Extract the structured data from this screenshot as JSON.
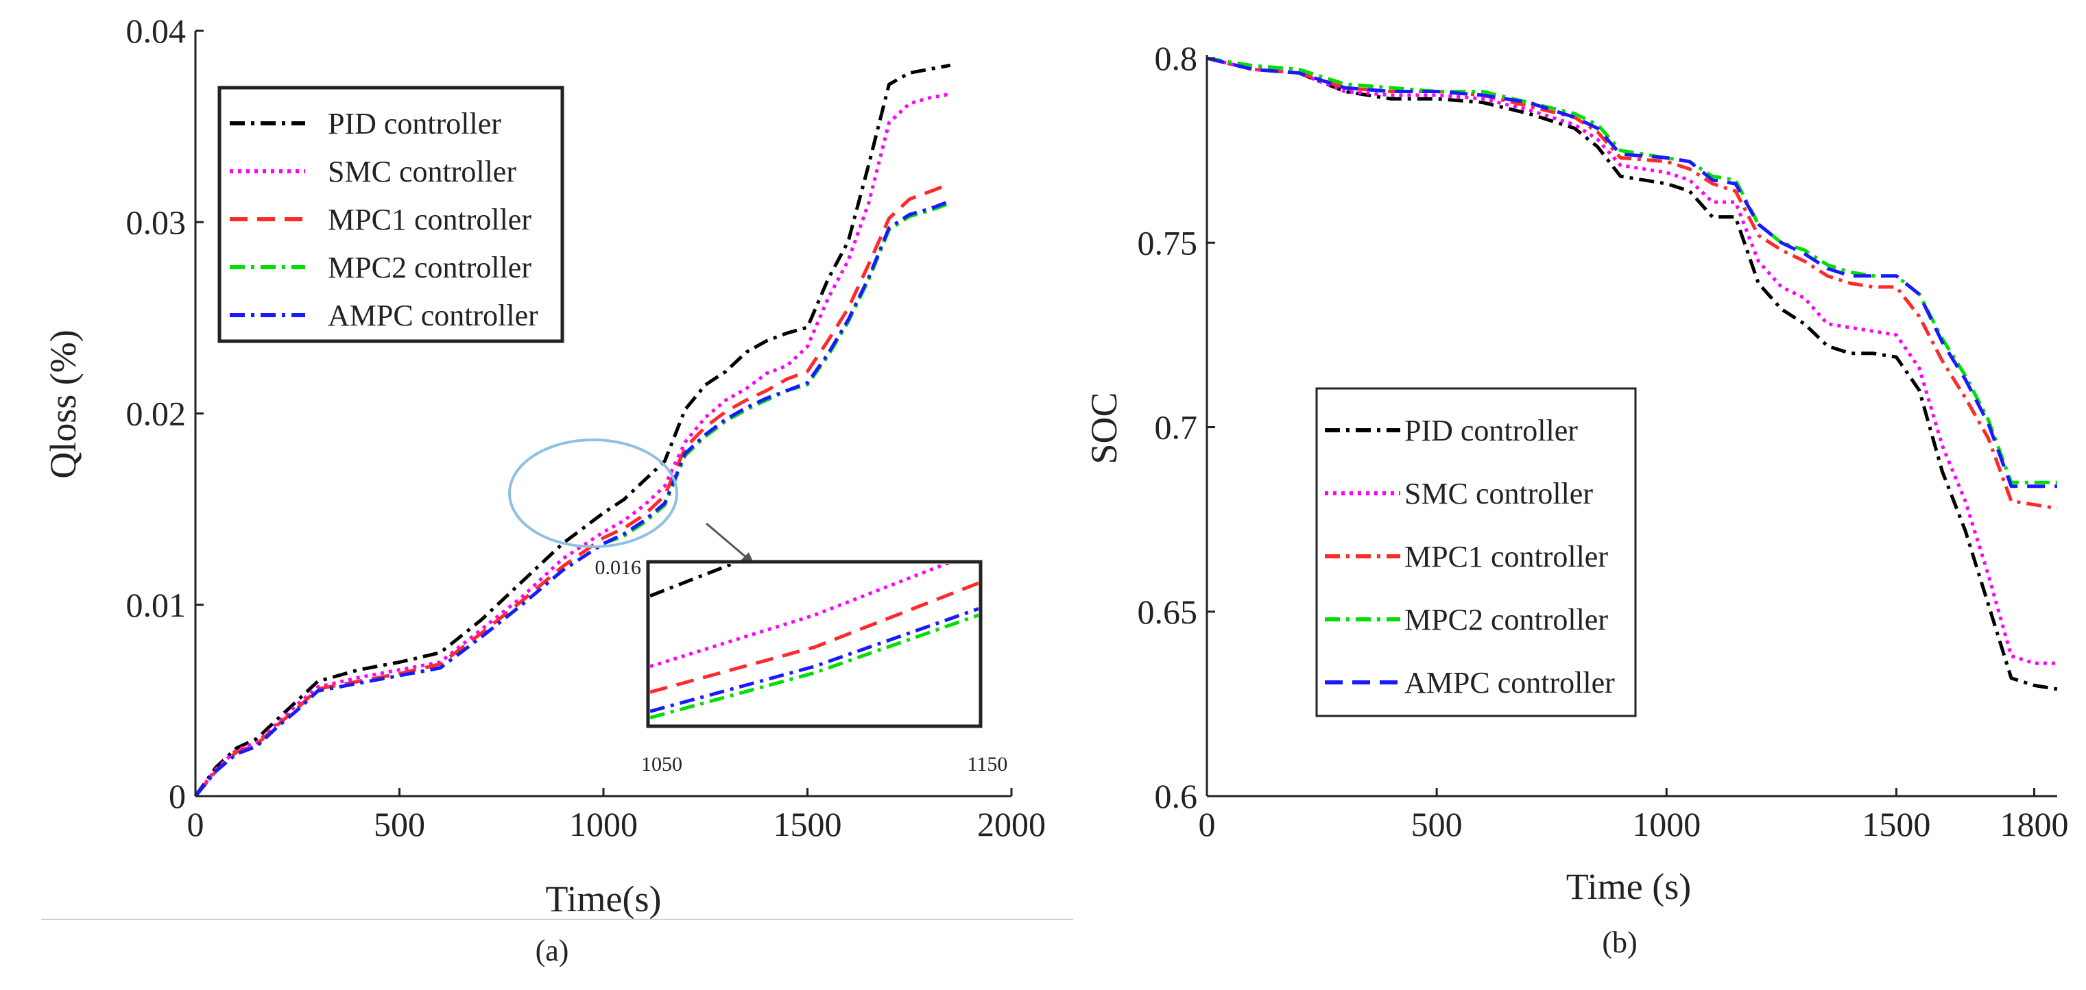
{
  "chart_data": [
    {
      "type": "line",
      "panel_caption": "(a)",
      "xlabel": "Time(s)",
      "ylabel": "Qloss (%)",
      "xlim": [
        0,
        2000
      ],
      "ylim": [
        0,
        0.04
      ],
      "x_ticks": [
        "0",
        "500",
        "1000",
        "1500",
        "2000"
      ],
      "y_ticks": [
        "0",
        "0.01",
        "0.02",
        "0.03",
        "0.04"
      ],
      "legend_position": "top-left",
      "series": [
        {
          "name": "PID controller",
          "color": "#000000",
          "dash": "dashdot",
          "x": [
            0,
            50,
            100,
            150,
            200,
            250,
            300,
            400,
            500,
            600,
            700,
            800,
            900,
            1000,
            1050,
            1100,
            1150,
            1200,
            1250,
            1300,
            1350,
            1400,
            1450,
            1500,
            1550,
            1600,
            1650,
            1700,
            1750,
            1800,
            1850
          ],
          "y": [
            0,
            0.0015,
            0.0025,
            0.003,
            0.004,
            0.005,
            0.006,
            0.0066,
            0.007,
            0.0075,
            0.0092,
            0.0112,
            0.0132,
            0.0148,
            0.0155,
            0.0165,
            0.0175,
            0.0202,
            0.0215,
            0.0222,
            0.0232,
            0.0238,
            0.0242,
            0.0245,
            0.027,
            0.029,
            0.033,
            0.0372,
            0.0378,
            0.038,
            0.0382
          ]
        },
        {
          "name": "SMC controller",
          "color": "#ff00ff",
          "dash": "dotted",
          "x": [
            0,
            50,
            100,
            150,
            200,
            250,
            300,
            400,
            500,
            600,
            700,
            800,
            900,
            1000,
            1050,
            1100,
            1150,
            1200,
            1250,
            1300,
            1350,
            1400,
            1450,
            1500,
            1550,
            1600,
            1650,
            1700,
            1750,
            1800,
            1850
          ],
          "y": [
            0,
            0.0014,
            0.0024,
            0.0028,
            0.0038,
            0.0048,
            0.0057,
            0.0062,
            0.0066,
            0.007,
            0.0087,
            0.0104,
            0.0124,
            0.0138,
            0.0144,
            0.0152,
            0.0162,
            0.0185,
            0.0198,
            0.0207,
            0.0213,
            0.0221,
            0.0225,
            0.0235,
            0.026,
            0.028,
            0.031,
            0.0352,
            0.0362,
            0.0365,
            0.0367
          ]
        },
        {
          "name": "MPC1 controller",
          "color": "#ff2a2a",
          "dash": "dashed",
          "x": [
            0,
            50,
            100,
            150,
            200,
            250,
            300,
            400,
            500,
            600,
            700,
            800,
            900,
            1000,
            1050,
            1100,
            1150,
            1200,
            1250,
            1300,
            1350,
            1400,
            1450,
            1500,
            1550,
            1600,
            1650,
            1700,
            1750,
            1800,
            1850
          ],
          "y": [
            0,
            0.0013,
            0.0023,
            0.0027,
            0.0037,
            0.0046,
            0.0056,
            0.006,
            0.0064,
            0.0069,
            0.0085,
            0.0102,
            0.012,
            0.0135,
            0.014,
            0.0147,
            0.0157,
            0.0182,
            0.0193,
            0.0201,
            0.0207,
            0.0212,
            0.0218,
            0.0222,
            0.0238,
            0.0255,
            0.0278,
            0.0302,
            0.0312,
            0.0316,
            0.032
          ]
        },
        {
          "name": "MPC2 controller",
          "color": "#00dd00",
          "dash": "dashdot",
          "x": [
            0,
            50,
            100,
            150,
            200,
            250,
            300,
            400,
            500,
            600,
            700,
            800,
            900,
            1000,
            1050,
            1100,
            1150,
            1200,
            1250,
            1300,
            1350,
            1400,
            1450,
            1500,
            1550,
            1600,
            1650,
            1700,
            1750,
            1800,
            1850
          ],
          "y": [
            0,
            0.0013,
            0.0022,
            0.0026,
            0.0036,
            0.0045,
            0.0055,
            0.0059,
            0.0063,
            0.0067,
            0.0083,
            0.01,
            0.0118,
            0.0132,
            0.0136,
            0.0143,
            0.0152,
            0.0178,
            0.0188,
            0.0196,
            0.0202,
            0.0207,
            0.0212,
            0.0215,
            0.023,
            0.0248,
            0.027,
            0.0296,
            0.0303,
            0.0306,
            0.031
          ]
        },
        {
          "name": "AMPC controller",
          "color": "#1a1aff",
          "dash": "dashdot",
          "x": [
            0,
            50,
            100,
            150,
            200,
            250,
            300,
            400,
            500,
            600,
            700,
            800,
            900,
            1000,
            1050,
            1100,
            1150,
            1200,
            1250,
            1300,
            1350,
            1400,
            1450,
            1500,
            1550,
            1600,
            1650,
            1700,
            1750,
            1800,
            1850
          ],
          "y": [
            0,
            0.0013,
            0.0022,
            0.0026,
            0.0036,
            0.0045,
            0.0055,
            0.0059,
            0.0063,
            0.0067,
            0.0083,
            0.01,
            0.0118,
            0.0132,
            0.0137,
            0.0144,
            0.0153,
            0.0179,
            0.0189,
            0.0197,
            0.0203,
            0.0208,
            0.0212,
            0.0216,
            0.0231,
            0.0249,
            0.0271,
            0.0297,
            0.0304,
            0.0307,
            0.0311
          ]
        }
      ],
      "inset": {
        "x_ticks": [
          "1050",
          "1150"
        ],
        "y_tick": "0.016",
        "xlim": [
          1050,
          1150
        ],
        "ylim": [
          0.0135,
          0.016
        ]
      }
    },
    {
      "type": "line",
      "panel_caption": "(b)",
      "xlabel": "Time (s)",
      "ylabel": "SOC",
      "xlim": [
        0,
        1850
      ],
      "ylim": [
        0.6,
        0.8
      ],
      "x_ticks": [
        "0",
        "500",
        "1000",
        "1500",
        "1800"
      ],
      "x_tick_values": [
        0,
        500,
        1000,
        1500,
        1800
      ],
      "y_ticks": [
        "0.6",
        "0.65",
        "0.7",
        "0.75",
        "0.8"
      ],
      "legend_position": "center-left",
      "series": [
        {
          "name": "PID controller",
          "color": "#000000",
          "dash": "dashdot",
          "x": [
            0,
            100,
            200,
            300,
            400,
            500,
            600,
            700,
            800,
            850,
            900,
            1000,
            1050,
            1100,
            1150,
            1200,
            1250,
            1300,
            1350,
            1400,
            1450,
            1500,
            1550,
            1600,
            1650,
            1700,
            1750,
            1800,
            1850
          ],
          "y": [
            0.8,
            0.797,
            0.796,
            0.791,
            0.789,
            0.789,
            0.788,
            0.785,
            0.781,
            0.776,
            0.768,
            0.766,
            0.764,
            0.757,
            0.757,
            0.739,
            0.732,
            0.728,
            0.722,
            0.72,
            0.72,
            0.719,
            0.71,
            0.688,
            0.672,
            0.652,
            0.632,
            0.63,
            0.629
          ]
        },
        {
          "name": "SMC controller",
          "color": "#ff00ff",
          "dash": "dotted",
          "x": [
            0,
            100,
            200,
            300,
            400,
            500,
            600,
            700,
            800,
            850,
            900,
            1000,
            1050,
            1100,
            1150,
            1200,
            1250,
            1300,
            1350,
            1400,
            1450,
            1500,
            1550,
            1600,
            1650,
            1700,
            1750,
            1800,
            1850
          ],
          "y": [
            0.8,
            0.797,
            0.796,
            0.791,
            0.79,
            0.79,
            0.789,
            0.786,
            0.782,
            0.778,
            0.771,
            0.769,
            0.767,
            0.761,
            0.761,
            0.745,
            0.738,
            0.735,
            0.728,
            0.727,
            0.726,
            0.725,
            0.716,
            0.695,
            0.68,
            0.66,
            0.638,
            0.636,
            0.636
          ]
        },
        {
          "name": "MPC1 controller",
          "color": "#ff2a2a",
          "dash": "dashdot",
          "x": [
            0,
            100,
            200,
            300,
            400,
            500,
            600,
            700,
            800,
            850,
            900,
            1000,
            1050,
            1100,
            1150,
            1200,
            1250,
            1300,
            1350,
            1400,
            1450,
            1500,
            1550,
            1600,
            1650,
            1700,
            1750,
            1800,
            1850
          ],
          "y": [
            0.8,
            0.797,
            0.796,
            0.792,
            0.791,
            0.791,
            0.79,
            0.787,
            0.784,
            0.78,
            0.773,
            0.772,
            0.77,
            0.766,
            0.764,
            0.752,
            0.748,
            0.745,
            0.741,
            0.739,
            0.738,
            0.738,
            0.73,
            0.718,
            0.708,
            0.697,
            0.68,
            0.679,
            0.678
          ]
        },
        {
          "name": "MPC2 controller",
          "color": "#00dd00",
          "dash": "dashdot",
          "x": [
            0,
            100,
            200,
            300,
            400,
            500,
            600,
            700,
            800,
            850,
            900,
            1000,
            1050,
            1100,
            1150,
            1200,
            1250,
            1300,
            1350,
            1400,
            1450,
            1500,
            1550,
            1600,
            1650,
            1700,
            1750,
            1800,
            1850
          ],
          "y": [
            0.8,
            0.798,
            0.797,
            0.793,
            0.792,
            0.791,
            0.791,
            0.788,
            0.785,
            0.782,
            0.775,
            0.773,
            0.772,
            0.768,
            0.767,
            0.755,
            0.75,
            0.748,
            0.744,
            0.742,
            0.741,
            0.741,
            0.736,
            0.724,
            0.714,
            0.702,
            0.685,
            0.685,
            0.685
          ]
        },
        {
          "name": "AMPC controller",
          "color": "#1a1aff",
          "dash": "dashed",
          "x": [
            0,
            100,
            200,
            300,
            400,
            500,
            600,
            700,
            800,
            850,
            900,
            1000,
            1050,
            1100,
            1150,
            1200,
            1250,
            1300,
            1350,
            1400,
            1450,
            1500,
            1550,
            1600,
            1650,
            1700,
            1750,
            1800,
            1850
          ],
          "y": [
            0.8,
            0.797,
            0.796,
            0.792,
            0.791,
            0.791,
            0.79,
            0.788,
            0.784,
            0.781,
            0.774,
            0.773,
            0.772,
            0.767,
            0.766,
            0.755,
            0.75,
            0.747,
            0.743,
            0.741,
            0.741,
            0.741,
            0.736,
            0.723,
            0.713,
            0.701,
            0.684,
            0.684,
            0.684
          ]
        }
      ]
    }
  ]
}
